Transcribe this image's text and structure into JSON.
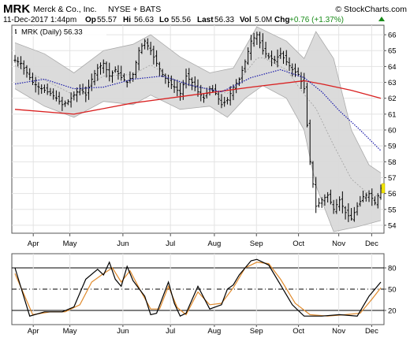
{
  "header": {
    "symbol": "MRK",
    "company": "Merck & Co., Inc.",
    "exchange": "NYSE + BATS",
    "brand": "© StockCharts.com",
    "date": "11-Dec-2017 1:44pm",
    "op_label": "Op",
    "op": "55.57",
    "hi_label": "Hi",
    "hi": "56.63",
    "lo_label": "Lo",
    "lo": "55.56",
    "last_label": "Last",
    "last": "56.33",
    "vol_label": "Vol",
    "vol": "5.0M",
    "chg_label": "Chg",
    "chg": "+0.76 (+1.37%)"
  },
  "legend": "MRK (Daily) 56.33",
  "colors": {
    "price_bars": "#000000",
    "bollinger_fill": "#d9d9d9",
    "ma_200": "#d91f1f",
    "ma_50_dotted": "#1a1aaa",
    "stoch_k": "#000000",
    "stoch_d": "#e08a2c",
    "last_marker": "#f2e600",
    "chg_up": "#1a8c1a"
  },
  "chart_data": [
    {
      "type": "ohlc",
      "x_labels": [
        "Apr",
        "May",
        "Jun",
        "Jul",
        "Aug",
        "Sep",
        "Oct",
        "Nov",
        "Dec"
      ],
      "y_ticks": [
        54,
        55,
        56,
        57,
        58,
        59,
        60,
        61,
        62,
        63,
        64,
        65,
        66
      ],
      "ylim": [
        53.5,
        66.6
      ],
      "grid": true,
      "last_value": 56.33,
      "close_path": [
        {
          "x": 0,
          "y": 64.4
        },
        {
          "x": 2,
          "y": 64.2
        },
        {
          "x": 4,
          "y": 63.6
        },
        {
          "x": 6,
          "y": 63.0
        },
        {
          "x": 8,
          "y": 62.7
        },
        {
          "x": 10,
          "y": 62.5
        },
        {
          "x": 12,
          "y": 62.3
        },
        {
          "x": 14,
          "y": 62.0
        },
        {
          "x": 16,
          "y": 61.6
        },
        {
          "x": 18,
          "y": 61.8
        },
        {
          "x": 20,
          "y": 62.2
        },
        {
          "x": 22,
          "y": 62.6
        },
        {
          "x": 24,
          "y": 62.2
        },
        {
          "x": 26,
          "y": 63.2
        },
        {
          "x": 28,
          "y": 63.9
        },
        {
          "x": 30,
          "y": 64.2
        },
        {
          "x": 32,
          "y": 63.4
        },
        {
          "x": 34,
          "y": 63.8
        },
        {
          "x": 36,
          "y": 63.3
        },
        {
          "x": 38,
          "y": 63.0
        },
        {
          "x": 40,
          "y": 63.5
        },
        {
          "x": 42,
          "y": 65.0
        },
        {
          "x": 44,
          "y": 65.6
        },
        {
          "x": 46,
          "y": 65.0
        },
        {
          "x": 48,
          "y": 64.2
        },
        {
          "x": 50,
          "y": 63.5
        },
        {
          "x": 52,
          "y": 63.0
        },
        {
          "x": 54,
          "y": 62.7
        },
        {
          "x": 56,
          "y": 62.3
        },
        {
          "x": 58,
          "y": 63.4
        },
        {
          "x": 60,
          "y": 63.0
        },
        {
          "x": 62,
          "y": 62.4
        },
        {
          "x": 64,
          "y": 62.0
        },
        {
          "x": 66,
          "y": 62.6
        },
        {
          "x": 68,
          "y": 62.3
        },
        {
          "x": 70,
          "y": 61.6
        },
        {
          "x": 72,
          "y": 61.9
        },
        {
          "x": 74,
          "y": 62.7
        },
        {
          "x": 76,
          "y": 63.2
        },
        {
          "x": 78,
          "y": 64.3
        },
        {
          "x": 80,
          "y": 65.6
        },
        {
          "x": 82,
          "y": 66.0
        },
        {
          "x": 84,
          "y": 65.0
        },
        {
          "x": 86,
          "y": 64.6
        },
        {
          "x": 88,
          "y": 64.4
        },
        {
          "x": 90,
          "y": 64.8
        },
        {
          "x": 92,
          "y": 64.3
        },
        {
          "x": 94,
          "y": 63.8
        },
        {
          "x": 96,
          "y": 63.5
        },
        {
          "x": 98,
          "y": 62.6
        },
        {
          "x": 100,
          "y": 58.0
        },
        {
          "x": 102,
          "y": 55.2
        },
        {
          "x": 104,
          "y": 55.6
        },
        {
          "x": 106,
          "y": 55.9
        },
        {
          "x": 108,
          "y": 55.0
        },
        {
          "x": 110,
          "y": 55.6
        },
        {
          "x": 112,
          "y": 54.8
        },
        {
          "x": 114,
          "y": 54.4
        },
        {
          "x": 116,
          "y": 55.2
        },
        {
          "x": 118,
          "y": 55.8
        },
        {
          "x": 120,
          "y": 56.0
        },
        {
          "x": 122,
          "y": 55.4
        },
        {
          "x": 124,
          "y": 56.33
        }
      ],
      "ma_200": [
        {
          "x": 0,
          "y": 61.3
        },
        {
          "x": 20,
          "y": 61.0
        },
        {
          "x": 40,
          "y": 61.7
        },
        {
          "x": 60,
          "y": 62.2
        },
        {
          "x": 80,
          "y": 62.7
        },
        {
          "x": 98,
          "y": 63.1
        },
        {
          "x": 104,
          "y": 62.9
        },
        {
          "x": 114,
          "y": 62.5
        },
        {
          "x": 124,
          "y": 62.0
        }
      ],
      "ma_50": [
        {
          "x": 0,
          "y": 62.9
        },
        {
          "x": 10,
          "y": 63.2
        },
        {
          "x": 20,
          "y": 62.6
        },
        {
          "x": 30,
          "y": 62.7
        },
        {
          "x": 40,
          "y": 63.2
        },
        {
          "x": 50,
          "y": 63.4
        },
        {
          "x": 60,
          "y": 62.8
        },
        {
          "x": 70,
          "y": 62.4
        },
        {
          "x": 80,
          "y": 63.3
        },
        {
          "x": 90,
          "y": 63.8
        },
        {
          "x": 98,
          "y": 63.3
        },
        {
          "x": 104,
          "y": 62.4
        },
        {
          "x": 110,
          "y": 61.2
        },
        {
          "x": 117,
          "y": 60.0
        },
        {
          "x": 124,
          "y": 58.7
        }
      ],
      "bollinger_upper": [
        {
          "x": 0,
          "y": 65.5
        },
        {
          "x": 10,
          "y": 64.8
        },
        {
          "x": 20,
          "y": 63.6
        },
        {
          "x": 30,
          "y": 65.0
        },
        {
          "x": 40,
          "y": 65.4
        },
        {
          "x": 46,
          "y": 66.0
        },
        {
          "x": 56,
          "y": 64.6
        },
        {
          "x": 66,
          "y": 63.6
        },
        {
          "x": 74,
          "y": 63.9
        },
        {
          "x": 82,
          "y": 66.5
        },
        {
          "x": 92,
          "y": 65.6
        },
        {
          "x": 98,
          "y": 64.5
        },
        {
          "x": 102,
          "y": 66.2
        },
        {
          "x": 108,
          "y": 64.5
        },
        {
          "x": 114,
          "y": 60.0
        },
        {
          "x": 120,
          "y": 57.8
        },
        {
          "x": 124,
          "y": 57.3
        }
      ],
      "bollinger_lower": [
        {
          "x": 0,
          "y": 62.6
        },
        {
          "x": 10,
          "y": 61.5
        },
        {
          "x": 20,
          "y": 60.8
        },
        {
          "x": 30,
          "y": 61.8
        },
        {
          "x": 40,
          "y": 61.6
        },
        {
          "x": 46,
          "y": 62.2
        },
        {
          "x": 56,
          "y": 61.3
        },
        {
          "x": 66,
          "y": 61.5
        },
        {
          "x": 72,
          "y": 60.8
        },
        {
          "x": 78,
          "y": 62.0
        },
        {
          "x": 84,
          "y": 62.8
        },
        {
          "x": 92,
          "y": 62.0
        },
        {
          "x": 98,
          "y": 60.0
        },
        {
          "x": 102,
          "y": 56.5
        },
        {
          "x": 108,
          "y": 53.6
        },
        {
          "x": 116,
          "y": 53.9
        },
        {
          "x": 124,
          "y": 54.3
        }
      ]
    },
    {
      "type": "line",
      "x_labels": [
        "Apr",
        "May",
        "Jun",
        "Jul",
        "Aug",
        "Sep",
        "Oct",
        "Nov",
        "Dec"
      ],
      "y_ticks": [
        20,
        50,
        80
      ],
      "ylim": [
        0,
        100
      ],
      "series": [
        {
          "key": "k",
          "values": [
            {
              "x": 0,
              "y": 80
            },
            {
              "x": 5,
              "y": 12
            },
            {
              "x": 10,
              "y": 18
            },
            {
              "x": 16,
              "y": 18
            },
            {
              "x": 20,
              "y": 25
            },
            {
              "x": 24,
              "y": 64
            },
            {
              "x": 28,
              "y": 78
            },
            {
              "x": 30,
              "y": 70
            },
            {
              "x": 32,
              "y": 88
            },
            {
              "x": 34,
              "y": 64
            },
            {
              "x": 36,
              "y": 54
            },
            {
              "x": 38,
              "y": 82
            },
            {
              "x": 40,
              "y": 62
            },
            {
              "x": 44,
              "y": 40
            },
            {
              "x": 46,
              "y": 14
            },
            {
              "x": 48,
              "y": 16
            },
            {
              "x": 50,
              "y": 38
            },
            {
              "x": 52,
              "y": 60
            },
            {
              "x": 54,
              "y": 30
            },
            {
              "x": 56,
              "y": 12
            },
            {
              "x": 58,
              "y": 16
            },
            {
              "x": 62,
              "y": 54
            },
            {
              "x": 66,
              "y": 22
            },
            {
              "x": 70,
              "y": 28
            },
            {
              "x": 72,
              "y": 50
            },
            {
              "x": 74,
              "y": 56
            },
            {
              "x": 76,
              "y": 70
            },
            {
              "x": 80,
              "y": 90
            },
            {
              "x": 82,
              "y": 92
            },
            {
              "x": 86,
              "y": 84
            },
            {
              "x": 90,
              "y": 56
            },
            {
              "x": 94,
              "y": 28
            },
            {
              "x": 98,
              "y": 12
            },
            {
              "x": 104,
              "y": 12
            },
            {
              "x": 110,
              "y": 14
            },
            {
              "x": 116,
              "y": 12
            },
            {
              "x": 120,
              "y": 40
            },
            {
              "x": 124,
              "y": 60
            }
          ]
        },
        {
          "key": "d",
          "values": [
            {
              "x": 0,
              "y": 72
            },
            {
              "x": 6,
              "y": 14
            },
            {
              "x": 12,
              "y": 18
            },
            {
              "x": 17,
              "y": 18
            },
            {
              "x": 22,
              "y": 28
            },
            {
              "x": 26,
              "y": 60
            },
            {
              "x": 30,
              "y": 72
            },
            {
              "x": 33,
              "y": 80
            },
            {
              "x": 36,
              "y": 60
            },
            {
              "x": 39,
              "y": 76
            },
            {
              "x": 42,
              "y": 52
            },
            {
              "x": 46,
              "y": 22
            },
            {
              "x": 49,
              "y": 22
            },
            {
              "x": 52,
              "y": 54
            },
            {
              "x": 55,
              "y": 24
            },
            {
              "x": 58,
              "y": 14
            },
            {
              "x": 62,
              "y": 46
            },
            {
              "x": 66,
              "y": 28
            },
            {
              "x": 70,
              "y": 30
            },
            {
              "x": 74,
              "y": 52
            },
            {
              "x": 78,
              "y": 80
            },
            {
              "x": 82,
              "y": 88
            },
            {
              "x": 86,
              "y": 86
            },
            {
              "x": 90,
              "y": 64
            },
            {
              "x": 95,
              "y": 30
            },
            {
              "x": 100,
              "y": 14
            },
            {
              "x": 106,
              "y": 12
            },
            {
              "x": 112,
              "y": 14
            },
            {
              "x": 117,
              "y": 16
            },
            {
              "x": 121,
              "y": 36
            },
            {
              "x": 124,
              "y": 52
            }
          ]
        }
      ]
    }
  ]
}
